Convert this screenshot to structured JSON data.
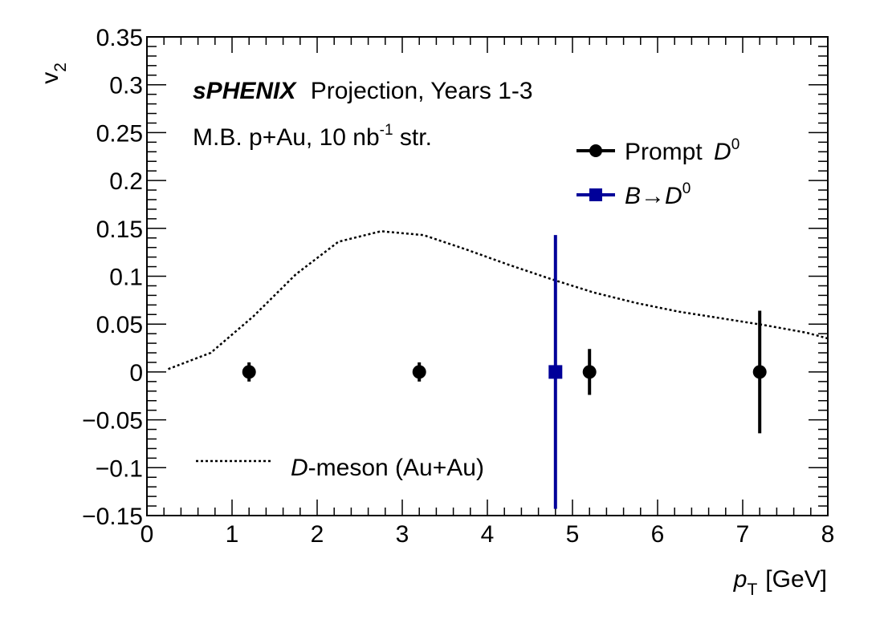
{
  "chart_data": {
    "type": "scatter",
    "title": "",
    "xlabel": "p",
    "xlabel_sub": "T",
    "xlabel_unit": "[GeV]",
    "ylabel": "v",
    "ylabel_sub": "2",
    "xlim": [
      0,
      8
    ],
    "ylim": [
      -0.15,
      0.35
    ],
    "x_ticks": [
      0,
      1,
      2,
      3,
      4,
      5,
      6,
      7,
      8
    ],
    "x_tick_labels": [
      "0",
      "1",
      "2",
      "3",
      "4",
      "5",
      "6",
      "7",
      "8"
    ],
    "y_ticks": [
      -0.15,
      -0.1,
      -0.05,
      0,
      0.05,
      0.1,
      0.15,
      0.2,
      0.25,
      0.3,
      0.35
    ],
    "y_tick_labels": [
      "−0.15",
      "−0.1",
      "−0.05",
      "0",
      "0.05",
      "0.1",
      "0.15",
      "0.2",
      "0.25",
      "0.3",
      "0.35"
    ],
    "grid": false,
    "annotations": {
      "experiment": "sPHENIX",
      "projection": "Projection, Years 1-3",
      "system_prefix": "M.B. p+Au, 10 nb",
      "system_sup": "-1",
      "system_suffix": " str."
    },
    "legend": {
      "placement": "top-right",
      "prompt_text": "Prompt ",
      "prompt_sym": "D",
      "prompt_sup": "0",
      "b_sym": "B",
      "b_arrow": "→",
      "b_d": "D",
      "b_sup": "0",
      "curve_sym": "D",
      "curve_text": "-meson (Au+Au)",
      "curve_placement": "bottom-left"
    },
    "series": [
      {
        "name": "Prompt D0",
        "color": "#000000",
        "marker": "circle",
        "points": [
          {
            "x": 1.2,
            "y": 0.0,
            "err": 0.01
          },
          {
            "x": 3.2,
            "y": 0.0,
            "err": 0.01
          },
          {
            "x": 5.2,
            "y": 0.0,
            "err": 0.024
          },
          {
            "x": 7.2,
            "y": 0.0,
            "err": 0.064
          }
        ]
      },
      {
        "name": "B→D0",
        "color": "#000099",
        "marker": "square",
        "points": [
          {
            "x": 4.8,
            "y": 0.0,
            "err": 0.143
          }
        ]
      },
      {
        "name": "D-meson (Au+Au)",
        "color": "#000000",
        "style": "dotted-line",
        "x": [
          0.25,
          0.75,
          1.25,
          1.75,
          2.25,
          2.75,
          3.25,
          3.75,
          4.25,
          4.75,
          5.25,
          5.75,
          6.25,
          6.75,
          7.25,
          7.75,
          8.0
        ],
        "y": [
          0.003,
          0.02,
          0.058,
          0.102,
          0.136,
          0.147,
          0.143,
          0.128,
          0.112,
          0.097,
          0.083,
          0.072,
          0.063,
          0.056,
          0.049,
          0.041,
          0.035
        ]
      }
    ]
  }
}
